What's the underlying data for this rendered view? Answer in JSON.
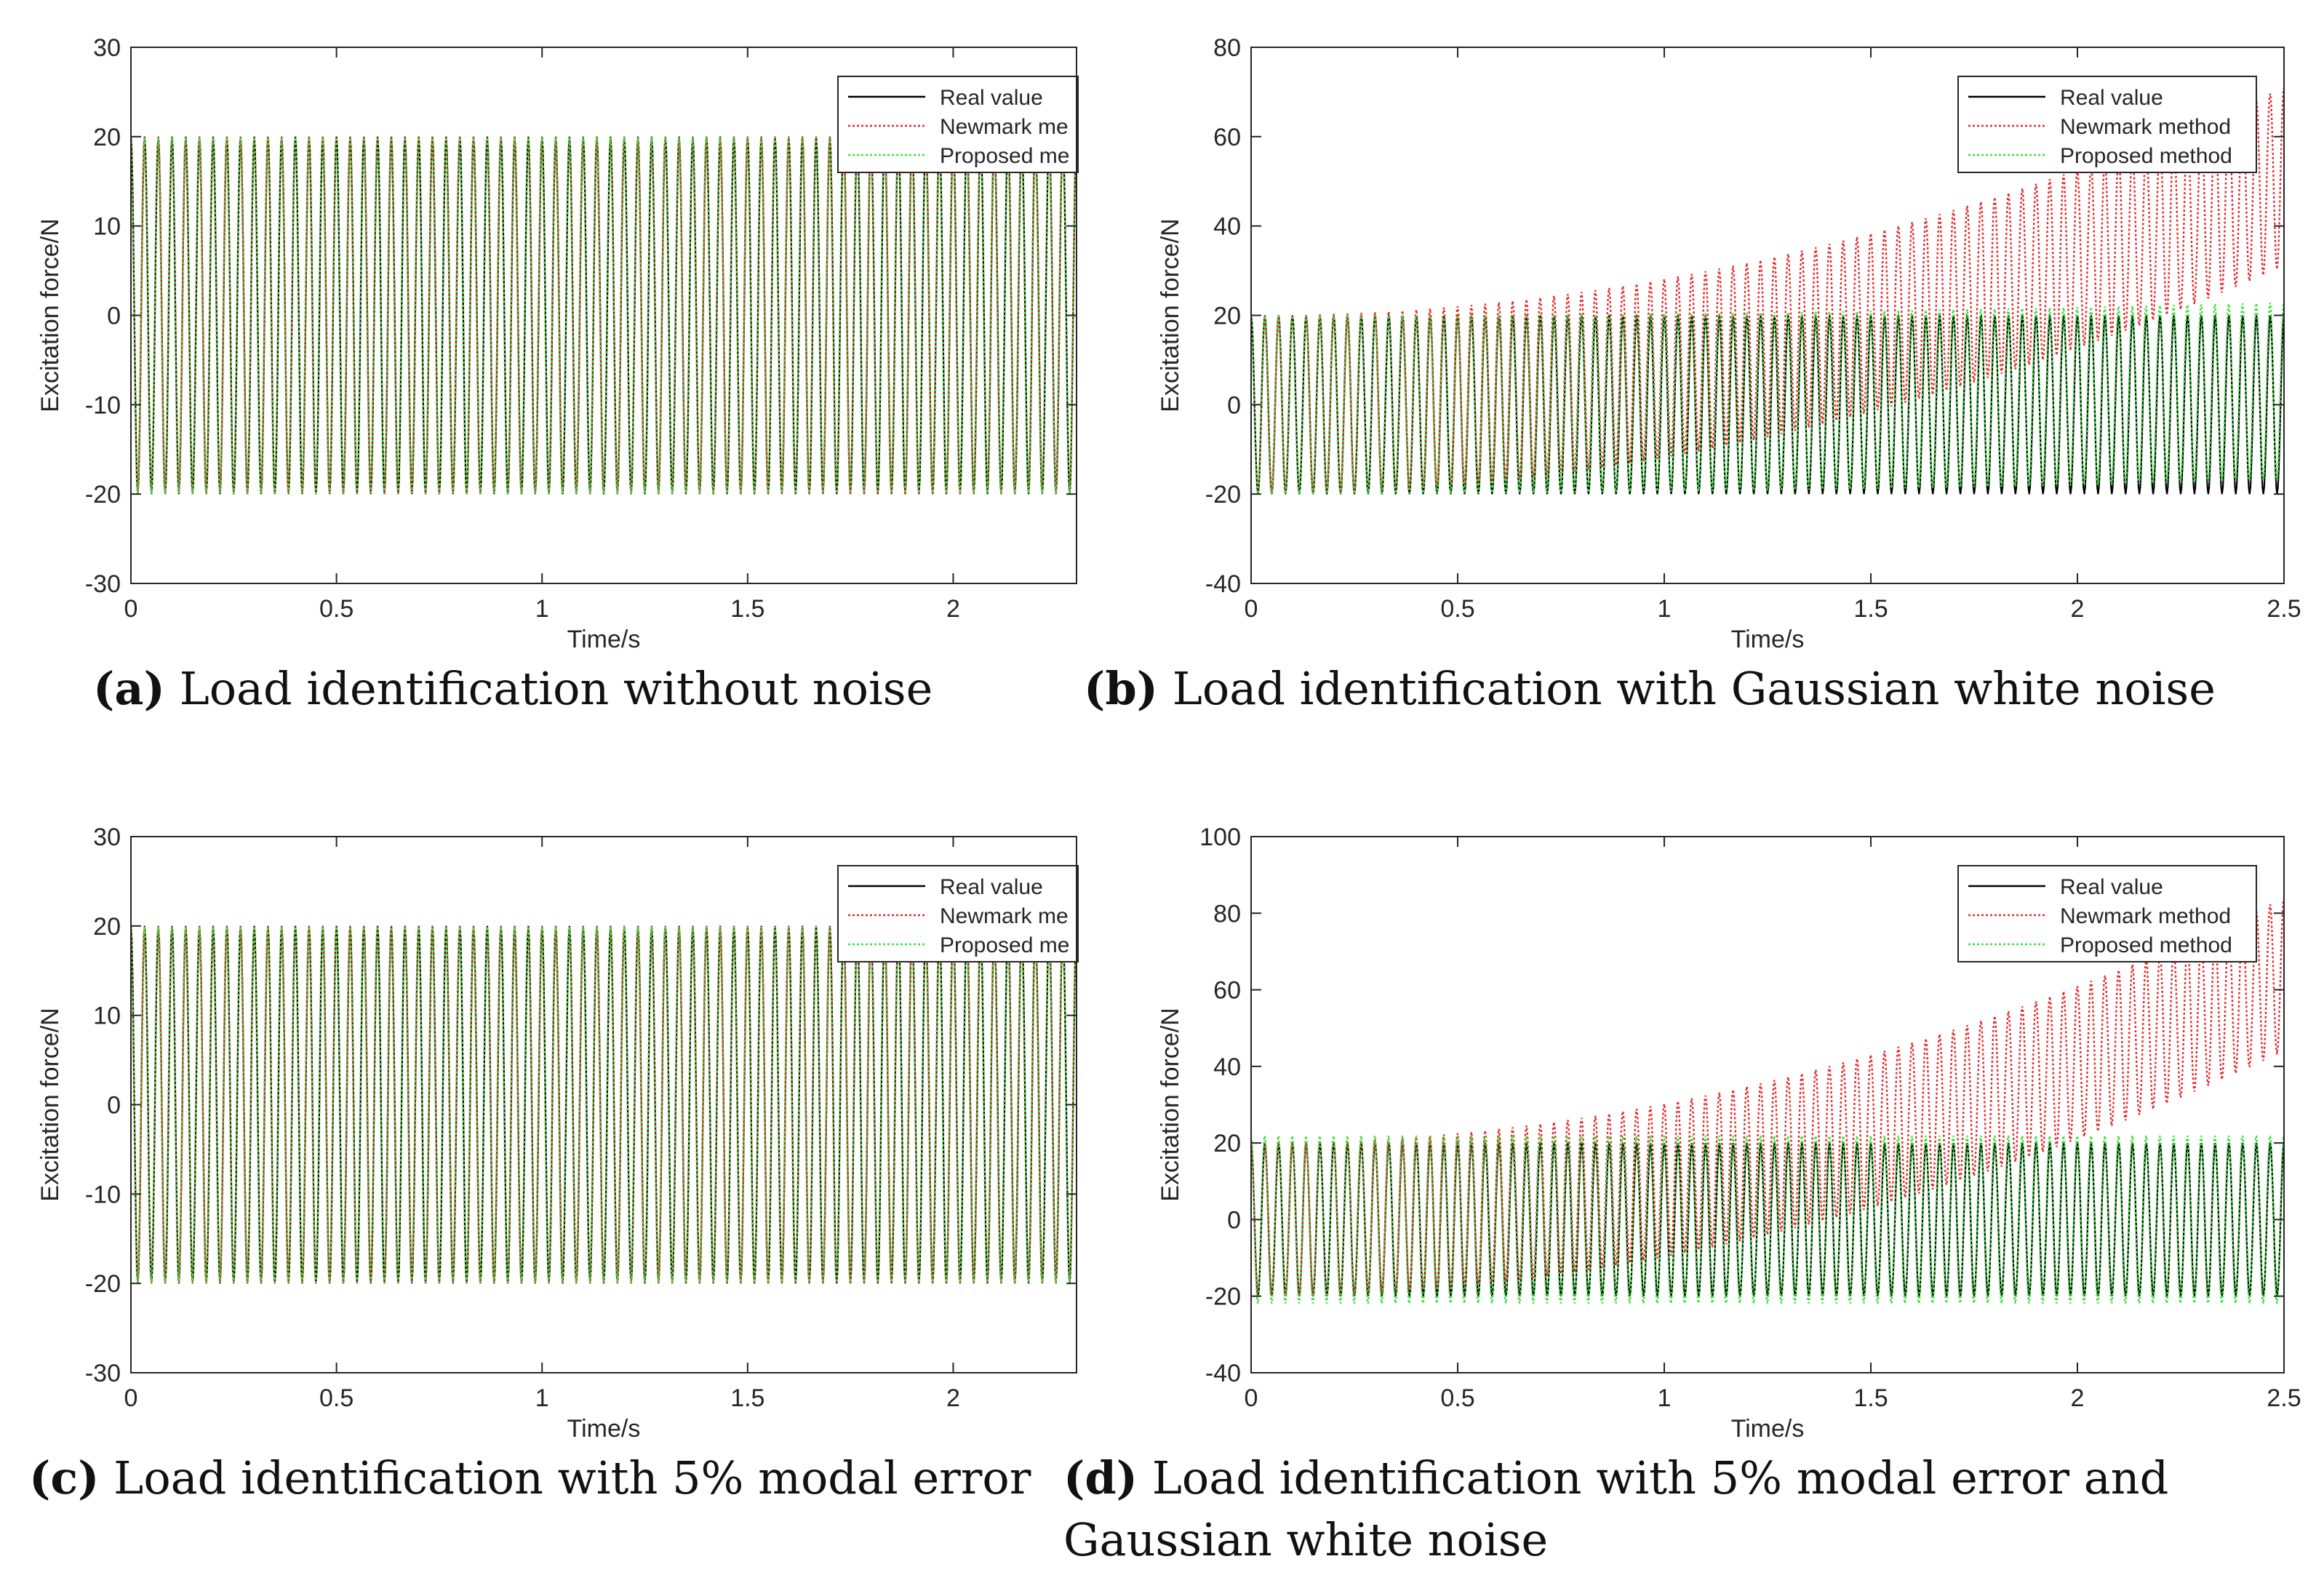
{
  "chart_data": [
    {
      "id": "a",
      "type": "line",
      "xlabel": "Time/s",
      "ylabel": "Excitation force/N",
      "xlim": [
        0,
        2.3
      ],
      "ylim": [
        -30,
        30
      ],
      "xticks": [
        "0",
        "0.5",
        "1",
        "1.5",
        "2"
      ],
      "xtick_values": [
        0,
        0.5,
        1,
        1.5,
        2
      ],
      "yticks": [
        "30",
        "20",
        "10",
        "0",
        "-10",
        "-20",
        "-30"
      ],
      "ytick_values": [
        30,
        20,
        10,
        0,
        -10,
        -20,
        -30
      ],
      "legend_position": "top-right",
      "legend": [
        "Real value",
        "Newmark me",
        "Proposed me"
      ],
      "signal": {
        "frequency_hz": 30,
        "amplitude": 20,
        "initial_value": 20
      },
      "series": [
        {
          "name": "Real value",
          "color": "#000000",
          "style": "solid",
          "amplitude_start": 20,
          "amplitude_end": 20,
          "drift_end": 0
        },
        {
          "name": "Newmark method",
          "color": "#e8272a",
          "style": "dotted",
          "amplitude_start": 20,
          "amplitude_end": 20,
          "drift_end": 0
        },
        {
          "name": "Proposed method",
          "color": "#3ee03e",
          "style": "dotted",
          "amplitude_start": 20,
          "amplitude_end": 20,
          "drift_end": 0
        }
      ],
      "caption_label": "(a)",
      "caption": "Load identification without noise",
      "caption2": ""
    },
    {
      "id": "b",
      "type": "line",
      "xlabel": "Time/s",
      "ylabel": "Excitation force/N",
      "xlim": [
        0,
        2.5
      ],
      "ylim": [
        -40,
        80
      ],
      "xticks": [
        "0",
        "0.5",
        "1",
        "1.5",
        "2",
        "2.5"
      ],
      "xtick_values": [
        0,
        0.5,
        1,
        1.5,
        2,
        2.5
      ],
      "yticks": [
        "80",
        "60",
        "40",
        "20",
        "0",
        "-20",
        "-40"
      ],
      "ytick_values": [
        80,
        60,
        40,
        20,
        0,
        -20,
        -40
      ],
      "legend_position": "top-right",
      "legend": [
        "Real value",
        "Newmark method",
        "Proposed method"
      ],
      "signal": {
        "frequency_hz": 30,
        "amplitude": 20,
        "initial_value": 20
      },
      "series": [
        {
          "name": "Real value",
          "color": "#000000",
          "style": "solid",
          "amplitude_start": 20,
          "amplitude_end": 20,
          "drift_end": 0
        },
        {
          "name": "Newmark method",
          "color": "#e8272a",
          "style": "dotted",
          "amplitude_start": 20,
          "amplitude_end": 20,
          "drift_end": 51
        },
        {
          "name": "Proposed method",
          "color": "#3ee03e",
          "style": "dotted",
          "amplitude_start": 20,
          "amplitude_end": 20,
          "drift_end": 3
        }
      ],
      "caption_label": "(b)",
      "caption": "Load identification with Gaussian white noise",
      "caption2": ""
    },
    {
      "id": "c",
      "type": "line",
      "xlabel": "Time/s",
      "ylabel": "Excitation force/N",
      "xlim": [
        0,
        2.3
      ],
      "ylim": [
        -30,
        30
      ],
      "xticks": [
        "0",
        "0.5",
        "1",
        "1.5",
        "2"
      ],
      "xtick_values": [
        0,
        0.5,
        1,
        1.5,
        2
      ],
      "yticks": [
        "30",
        "20",
        "10",
        "0",
        "-10",
        "-20",
        "-30"
      ],
      "ytick_values": [
        30,
        20,
        10,
        0,
        -10,
        -20,
        -30
      ],
      "legend_position": "top-right",
      "legend": [
        "Real value",
        "Newmark me",
        "Proposed me"
      ],
      "signal": {
        "frequency_hz": 30,
        "amplitude": 20,
        "initial_value": 20
      },
      "series": [
        {
          "name": "Real value",
          "color": "#000000",
          "style": "solid",
          "amplitude_start": 20,
          "amplitude_end": 20,
          "drift_end": 0
        },
        {
          "name": "Newmark method",
          "color": "#e8272a",
          "style": "dotted",
          "amplitude_start": 20,
          "amplitude_end": 20,
          "drift_end": 0
        },
        {
          "name": "Proposed method",
          "color": "#3ee03e",
          "style": "dotted",
          "amplitude_start": 20,
          "amplitude_end": 20,
          "drift_end": 0
        }
      ],
      "caption_label": "(c)",
      "caption": "Load identification with 5% modal error",
      "caption2": ""
    },
    {
      "id": "d",
      "type": "line",
      "xlabel": "Time/s",
      "ylabel": "Excitation force/N",
      "xlim": [
        0,
        2.5
      ],
      "ylim": [
        -40,
        100
      ],
      "xticks": [
        "0",
        "0.5",
        "1",
        "1.5",
        "2",
        "2.5"
      ],
      "xtick_values": [
        0,
        0.5,
        1,
        1.5,
        2,
        2.5
      ],
      "yticks": [
        "100",
        "80",
        "60",
        "40",
        "20",
        "0",
        "-20",
        "-40"
      ],
      "ytick_values": [
        100,
        80,
        60,
        40,
        20,
        0,
        -20,
        -40
      ],
      "legend_position": "top-right",
      "legend": [
        "Real value",
        "Newmark method",
        "Proposed method"
      ],
      "signal": {
        "frequency_hz": 30,
        "amplitude": 20,
        "initial_value": 20
      },
      "series": [
        {
          "name": "Real value",
          "color": "#000000",
          "style": "solid",
          "amplitude_start": 20,
          "amplitude_end": 20,
          "drift_end": 0
        },
        {
          "name": "Newmark method",
          "color": "#e8272a",
          "style": "dotted",
          "amplitude_start": 20,
          "amplitude_end": 20,
          "drift_end": 64
        },
        {
          "name": "Proposed method",
          "color": "#3ee03e",
          "style": "dotted",
          "amplitude_start": 22,
          "amplitude_end": 22,
          "drift_end": 0
        }
      ],
      "caption_label": "(d)",
      "caption": "Load identification with 5% modal error and",
      "caption2": "Gaussian white noise"
    }
  ]
}
